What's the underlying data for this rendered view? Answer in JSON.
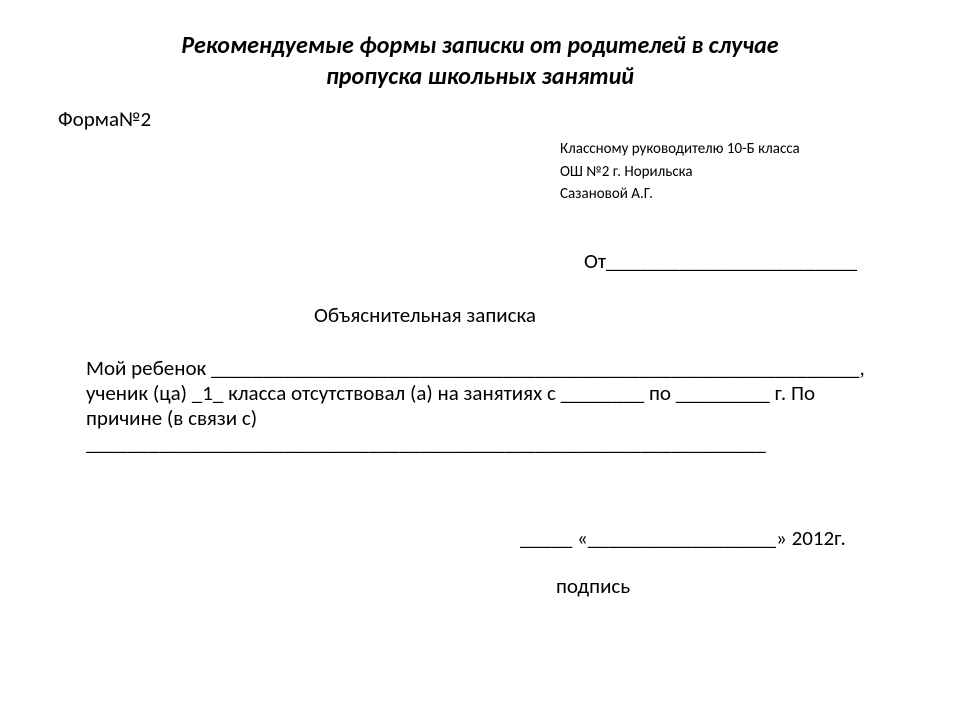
{
  "title_line1": "Рекомендуемые формы записки от родителей в случае",
  "title_line2": "пропуска школьных занятий",
  "form_number": "Форма№2",
  "addressee": {
    "line1": "Классному руководителю 10-Б класса",
    "line2": "ОШ №2 г. Норильска",
    "line3": "Сазановой А.Г."
  },
  "from": "От________________________",
  "doc_title": "Объяснительная записка",
  "body": "Мой ребенок ______________________________________________________________, ученик (ца) _1_ класса отсутствовал (а) на занятиях с ________ по _________ г. По причине (в связи с) _________________________________________________________________",
  "date_line": "_____ «__________________» 2012г.",
  "signature": "подпись",
  "colors": {
    "background": "#ffffff",
    "text": "#000000"
  }
}
